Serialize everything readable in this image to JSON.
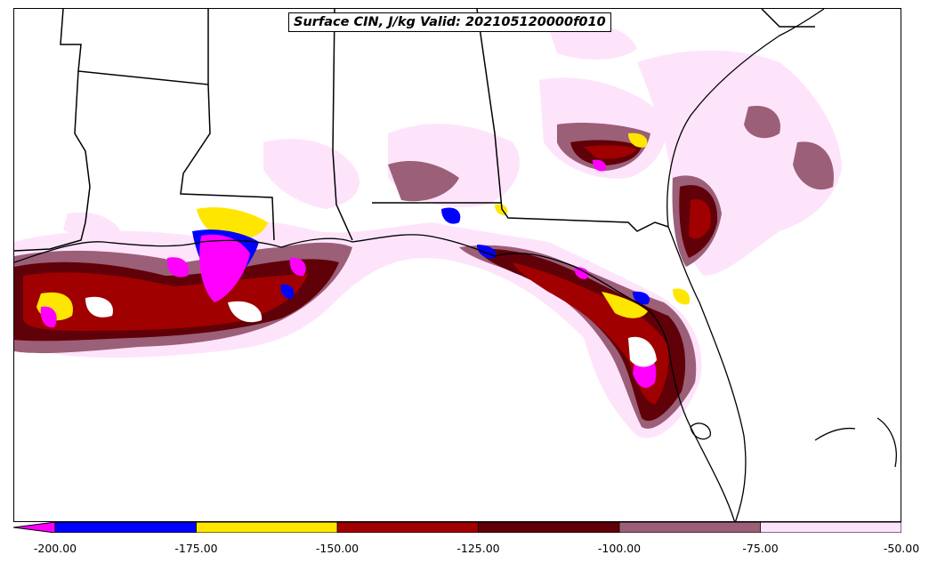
{
  "title": "Surface CIN, J/kg Valid: 202105120000f010",
  "colorbar": {
    "extend": "min",
    "min_color": "#ff00ff",
    "bins": [
      {
        "from": -200,
        "to": -175,
        "color": "#0000ff"
      },
      {
        "from": -175,
        "to": -150,
        "color": "#ffe600"
      },
      {
        "from": -150,
        "to": -125,
        "color": "#a00000"
      },
      {
        "from": -125,
        "to": -100,
        "color": "#600008"
      },
      {
        "from": -100,
        "to": -75,
        "color": "#9b5f78"
      },
      {
        "from": -75,
        "to": -50,
        "color": "#fde4fb"
      }
    ],
    "tick_labels": [
      "-200.00",
      "-175.00",
      "-150.00",
      "-125.00",
      "-100.00",
      "-75.00",
      "-50.00"
    ]
  }
}
